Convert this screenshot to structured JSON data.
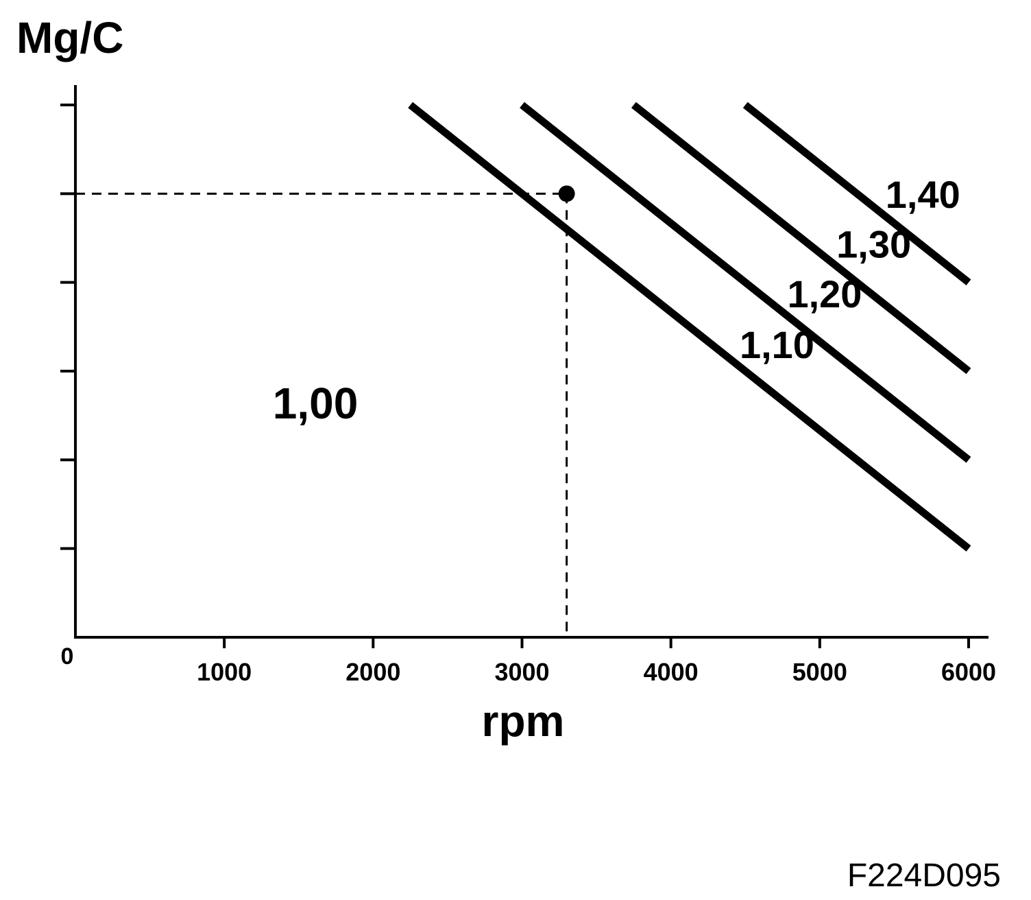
{
  "chart_data": {
    "type": "line",
    "title": "",
    "ylabel": "Mg/C",
    "xlabel": "rpm",
    "origin_label": "0",
    "x_ticks": [
      1000,
      2000,
      3000,
      4000,
      5000,
      6000
    ],
    "x_tick_labels": [
      "1000",
      "2000",
      "3000",
      "4000",
      "5000",
      "6000"
    ],
    "xlim": [
      0,
      6000
    ],
    "ylim": [
      0,
      6
    ],
    "y_ticks": [
      1,
      2,
      3,
      4,
      5,
      6
    ],
    "y_tick_labels": [],
    "grid": false,
    "series": [
      {
        "name": "1,10",
        "x": [
          2250,
          6000
        ],
        "y": [
          6.0,
          1.0
        ]
      },
      {
        "name": "1,20",
        "x": [
          3000,
          6000
        ],
        "y": [
          6.0,
          2.0
        ]
      },
      {
        "name": "1,30",
        "x": [
          3750,
          6000
        ],
        "y": [
          6.0,
          3.0
        ]
      },
      {
        "name": "1,40",
        "x": [
          4500,
          6000
        ],
        "y": [
          6.0,
          4.0
        ]
      }
    ],
    "region_label": "1,00",
    "marker_point": {
      "x": 3300,
      "y": 5.0
    }
  },
  "figure_id": "F224D095"
}
